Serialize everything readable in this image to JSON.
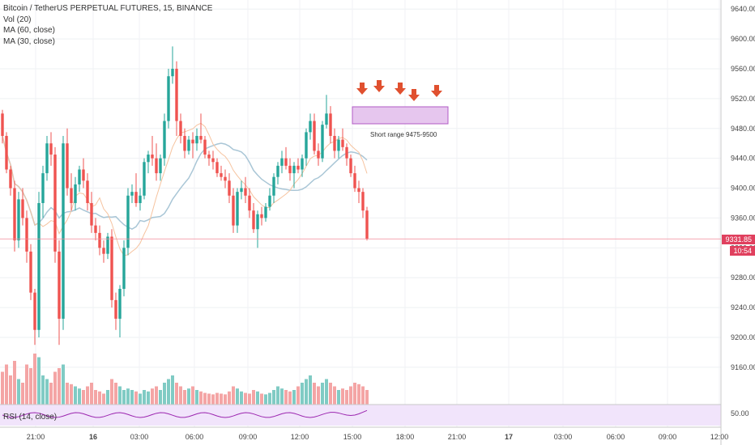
{
  "legend": {
    "symbol": "Bitcoin / TetherUS PERPETUAL FUTURES, 15, BINANCE",
    "vol": "Vol (20)",
    "ma60": "MA (60, close)",
    "ma30": "MA (30, close)"
  },
  "rsi_label": "RSI (14, close)",
  "last_price": "9331.85",
  "countdown": "10:54",
  "annotation": "Short range 9475-9500",
  "colors": {
    "up": "#26a69a",
    "down": "#ef5350",
    "vol_up": "#80cbc4",
    "vol_down": "#f4a5a5",
    "ma60": "#a9c6d6",
    "ma30": "#f6c39f",
    "rsi_line": "#9c27b0",
    "rsi_band": "#f1e4fb",
    "arrow": "#e0502f",
    "box_fill": "#e6c6ee",
    "box_stroke": "#b05bc5",
    "price_line": "#f28b9b"
  },
  "chart_data": {
    "type": "candlestick",
    "title": "Bitcoin / TetherUS PERPETUAL FUTURES, 15, BINANCE",
    "y_ticks": [
      "9640.00",
      "9600.00",
      "9560.00",
      "9520.00",
      "9480.00",
      "9440.00",
      "9400.00",
      "9360.00",
      "9320.00",
      "9280.00",
      "9240.00",
      "9200.00",
      "9160.00"
    ],
    "x_ticks": [
      "21:00",
      "16",
      "03:00",
      "06:00",
      "09:00",
      "12:00",
      "15:00",
      "18:00",
      "21:00",
      "17",
      "03:00",
      "06:00",
      "09:00",
      "12:00"
    ],
    "rsi_tick": "50.00",
    "ylim": [
      9136,
      9650
    ],
    "candles": [
      [
        9500,
        9505,
        9460,
        9470
      ],
      [
        9470,
        9475,
        9420,
        9425
      ],
      [
        9425,
        9430,
        9390,
        9400
      ],
      [
        9400,
        9410,
        9315,
        9330
      ],
      [
        9330,
        9395,
        9320,
        9385
      ],
      [
        9385,
        9400,
        9350,
        9360
      ],
      [
        9360,
        9370,
        9300,
        9315
      ],
      [
        9315,
        9325,
        9250,
        9260
      ],
      [
        9260,
        9265,
        9190,
        9210
      ],
      [
        9210,
        9395,
        9200,
        9380
      ],
      [
        9380,
        9430,
        9360,
        9420
      ],
      [
        9420,
        9470,
        9410,
        9460
      ],
      [
        9460,
        9475,
        9430,
        9445
      ],
      [
        9445,
        9455,
        9300,
        9315
      ],
      [
        9315,
        9330,
        9190,
        9225
      ],
      [
        9225,
        9470,
        9210,
        9460
      ],
      [
        9460,
        9480,
        9390,
        9400
      ],
      [
        9400,
        9420,
        9370,
        9380
      ],
      [
        9380,
        9415,
        9370,
        9405
      ],
      [
        9405,
        9430,
        9395,
        9425
      ],
      [
        9425,
        9440,
        9400,
        9410
      ],
      [
        9410,
        9420,
        9370,
        9380
      ],
      [
        9380,
        9395,
        9340,
        9350
      ],
      [
        9350,
        9360,
        9330,
        9340
      ],
      [
        9340,
        9350,
        9310,
        9320
      ],
      [
        9320,
        9330,
        9300,
        9312
      ],
      [
        9312,
        9340,
        9305,
        9335
      ],
      [
        9335,
        9345,
        9240,
        9250
      ],
      [
        9250,
        9260,
        9210,
        9225
      ],
      [
        9225,
        9270,
        9200,
        9265
      ],
      [
        9265,
        9330,
        9255,
        9320
      ],
      [
        9320,
        9400,
        9310,
        9390
      ],
      [
        9390,
        9405,
        9380,
        9395
      ],
      [
        9395,
        9420,
        9375,
        9380
      ],
      [
        9380,
        9400,
        9370,
        9390
      ],
      [
        9390,
        9440,
        9385,
        9435
      ],
      [
        9435,
        9450,
        9420,
        9445
      ],
      [
        9445,
        9470,
        9430,
        9440
      ],
      [
        9440,
        9460,
        9410,
        9420
      ],
      [
        9420,
        9445,
        9410,
        9440
      ],
      [
        9440,
        9500,
        9430,
        9490
      ],
      [
        9490,
        9560,
        9480,
        9550
      ],
      [
        9550,
        9590,
        9540,
        9560
      ],
      [
        9560,
        9570,
        9470,
        9490
      ],
      [
        9490,
        9500,
        9460,
        9470
      ],
      [
        9470,
        9480,
        9440,
        9450
      ],
      [
        9450,
        9470,
        9445,
        9465
      ],
      [
        9465,
        9475,
        9440,
        9460
      ],
      [
        9460,
        9480,
        9450,
        9470
      ],
      [
        9470,
        9500,
        9460,
        9465
      ],
      [
        9465,
        9470,
        9440,
        9445
      ],
      [
        9445,
        9450,
        9430,
        9440
      ],
      [
        9440,
        9450,
        9425,
        9435
      ],
      [
        9435,
        9440,
        9415,
        9420
      ],
      [
        9420,
        9430,
        9410,
        9415
      ],
      [
        9415,
        9425,
        9400,
        9410
      ],
      [
        9410,
        9420,
        9380,
        9390
      ],
      [
        9390,
        9400,
        9340,
        9350
      ],
      [
        9350,
        9400,
        9340,
        9395
      ],
      [
        9395,
        9410,
        9385,
        9400
      ],
      [
        9400,
        9415,
        9380,
        9390
      ],
      [
        9390,
        9400,
        9360,
        9370
      ],
      [
        9370,
        9380,
        9340,
        9345
      ],
      [
        9345,
        9370,
        9320,
        9365
      ],
      [
        9365,
        9375,
        9350,
        9360
      ],
      [
        9360,
        9380,
        9355,
        9375
      ],
      [
        9375,
        9400,
        9370,
        9390
      ],
      [
        9390,
        9420,
        9380,
        9415
      ],
      [
        9415,
        9435,
        9405,
        9430
      ],
      [
        9430,
        9450,
        9420,
        9440
      ],
      [
        9440,
        9455,
        9425,
        9430
      ],
      [
        9430,
        9440,
        9410,
        9420
      ],
      [
        9420,
        9435,
        9400,
        9430
      ],
      [
        9430,
        9440,
        9420,
        9425
      ],
      [
        9425,
        9445,
        9415,
        9440
      ],
      [
        9440,
        9480,
        9430,
        9475
      ],
      [
        9475,
        9500,
        9465,
        9490
      ],
      [
        9490,
        9500,
        9445,
        9450
      ],
      [
        9450,
        9460,
        9430,
        9440
      ],
      [
        9440,
        9490,
        9435,
        9485
      ],
      [
        9485,
        9525,
        9480,
        9500
      ],
      [
        9500,
        9510,
        9460,
        9470
      ],
      [
        9470,
        9480,
        9440,
        9450
      ],
      [
        9450,
        9470,
        9440,
        9465
      ],
      [
        9465,
        9480,
        9450,
        9455
      ],
      [
        9455,
        9460,
        9430,
        9440
      ],
      [
        9440,
        9445,
        9415,
        9420
      ],
      [
        9420,
        9430,
        9395,
        9400
      ],
      [
        9400,
        9410,
        9380,
        9395
      ],
      [
        9395,
        9400,
        9360,
        9370
      ],
      [
        9370,
        9375,
        9330,
        9332
      ]
    ],
    "volumes": [
      0.45,
      0.55,
      0.4,
      0.6,
      0.35,
      0.3,
      0.55,
      0.5,
      0.7,
      0.65,
      0.4,
      0.35,
      0.3,
      0.45,
      0.5,
      0.55,
      0.3,
      0.28,
      0.25,
      0.22,
      0.2,
      0.25,
      0.3,
      0.2,
      0.18,
      0.15,
      0.2,
      0.35,
      0.3,
      0.25,
      0.2,
      0.22,
      0.2,
      0.18,
      0.15,
      0.2,
      0.18,
      0.22,
      0.25,
      0.2,
      0.3,
      0.35,
      0.4,
      0.3,
      0.25,
      0.2,
      0.22,
      0.25,
      0.2,
      0.18,
      0.16,
      0.15,
      0.14,
      0.16,
      0.15,
      0.14,
      0.18,
      0.25,
      0.22,
      0.18,
      0.16,
      0.15,
      0.2,
      0.18,
      0.15,
      0.14,
      0.16,
      0.2,
      0.25,
      0.22,
      0.2,
      0.18,
      0.2,
      0.25,
      0.3,
      0.35,
      0.4,
      0.3,
      0.25,
      0.3,
      0.35,
      0.3,
      0.25,
      0.2,
      0.22,
      0.2,
      0.25,
      0.3,
      0.28,
      0.25,
      0.2
    ]
  }
}
